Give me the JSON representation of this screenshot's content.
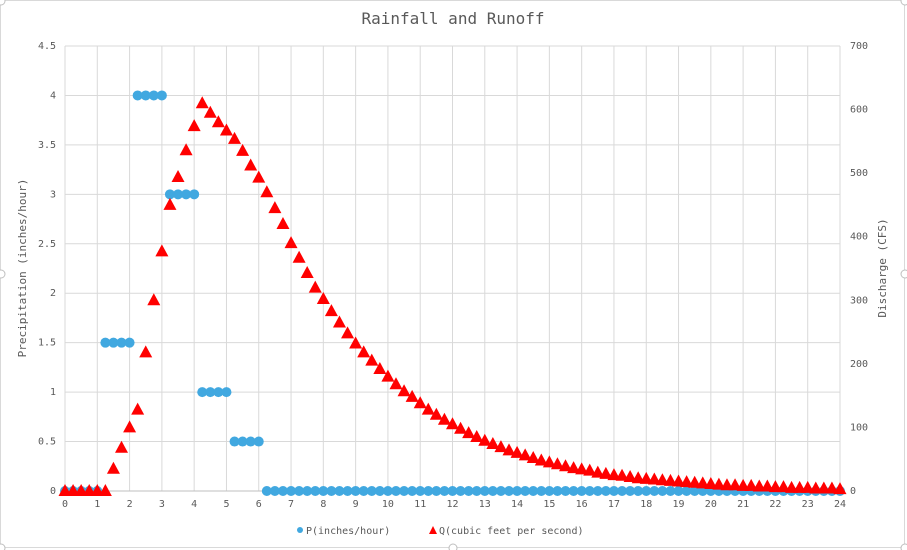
{
  "chart_data": {
    "type": "scatter",
    "title": "Rainfall and Runoff",
    "xlim": [
      0,
      24
    ],
    "x_ticks": [
      "0",
      "1",
      "2",
      "3",
      "4",
      "5",
      "6",
      "7",
      "8",
      "9",
      "10",
      "11",
      "12",
      "13",
      "14",
      "15",
      "16",
      "17",
      "18",
      "19",
      "20",
      "21",
      "22",
      "23",
      "24"
    ],
    "y_left": {
      "label": "Precipitation (inches/hour)",
      "lim": [
        0,
        4.5
      ],
      "ticks": [
        "0",
        "0.5",
        "1",
        "1.5",
        "2",
        "2.5",
        "3",
        "3.5",
        "4",
        "4.5"
      ]
    },
    "y_right": {
      "label": "Discharge (CFS)",
      "lim": [
        0,
        700
      ],
      "ticks": [
        "0",
        "100",
        "200",
        "300",
        "400",
        "500",
        "600",
        "700"
      ]
    },
    "grid": true,
    "legend_position": "bottom",
    "series": [
      {
        "name": "P(inches/hour)",
        "axis": "left",
        "marker": "circle",
        "color": "#41a8e0",
        "steps": [
          {
            "from": 0,
            "to": 1,
            "value": 0
          },
          {
            "from": 1.25,
            "to": 2,
            "value": 1.5
          },
          {
            "from": 2.25,
            "to": 3,
            "value": 4
          },
          {
            "from": 3.25,
            "to": 4,
            "value": 3
          },
          {
            "from": 4.25,
            "to": 5,
            "value": 1
          },
          {
            "from": 5.25,
            "to": 6,
            "value": 0.5
          },
          {
            "from": 6.25,
            "to": 24,
            "value": 0
          }
        ],
        "step_interval": 0.25
      },
      {
        "name": "Q(cubic feet per second)",
        "axis": "right",
        "marker": "triangle",
        "color": "#ff0000",
        "x": [
          0,
          0.25,
          0.5,
          0.75,
          1,
          1.25,
          1.5,
          1.75,
          2,
          2.25,
          2.5,
          2.75,
          3,
          3.25,
          3.5,
          3.75,
          4,
          4.25,
          4.5,
          4.75,
          5,
          5.25,
          5.5,
          5.75,
          6,
          6.25,
          6.5,
          6.75,
          7,
          7.25,
          7.5,
          7.75,
          8,
          8.25,
          8.5,
          8.75,
          9,
          9.25,
          9.5,
          9.75,
          10,
          10.25,
          10.5,
          10.75,
          11,
          11.25,
          11.5,
          11.75,
          12,
          12.25,
          12.5,
          12.75,
          13,
          13.25,
          13.5,
          13.75,
          14,
          14.25,
          14.5,
          14.75,
          15,
          15.25,
          15.5,
          15.75,
          16,
          16.25,
          16.5,
          16.75,
          17,
          17.25,
          17.5,
          17.75,
          18,
          18.25,
          18.5,
          18.75,
          19,
          19.25,
          19.5,
          19.75,
          20,
          20.25,
          20.5,
          20.75,
          21,
          21.25,
          21.5,
          21.75,
          22,
          22.25,
          22.5,
          22.75,
          23,
          23.25,
          23.5,
          23.75,
          24
        ],
        "y": [
          0,
          0,
          0,
          0,
          0,
          0,
          35,
          68,
          100,
          128,
          218,
          300,
          377,
          450,
          494,
          536,
          574,
          610,
          595,
          580,
          567,
          554,
          535,
          512,
          493,
          470,
          445,
          420,
          390,
          367,
          343,
          320,
          302,
          283,
          265,
          248,
          232,
          218,
          205,
          192,
          180,
          168,
          157,
          148,
          138,
          128,
          120,
          112,
          105,
          98,
          91,
          85,
          79,
          74,
          69,
          64,
          60,
          56,
          52,
          48,
          45,
          42,
          39,
          36,
          34,
          32,
          29,
          27,
          25,
          24,
          22,
          20,
          19,
          18,
          17,
          16,
          15,
          14,
          13,
          12,
          11,
          10,
          9,
          9,
          8,
          8,
          7,
          7,
          6,
          6,
          5,
          5,
          5,
          4,
          4,
          4,
          3
        ]
      }
    ]
  }
}
